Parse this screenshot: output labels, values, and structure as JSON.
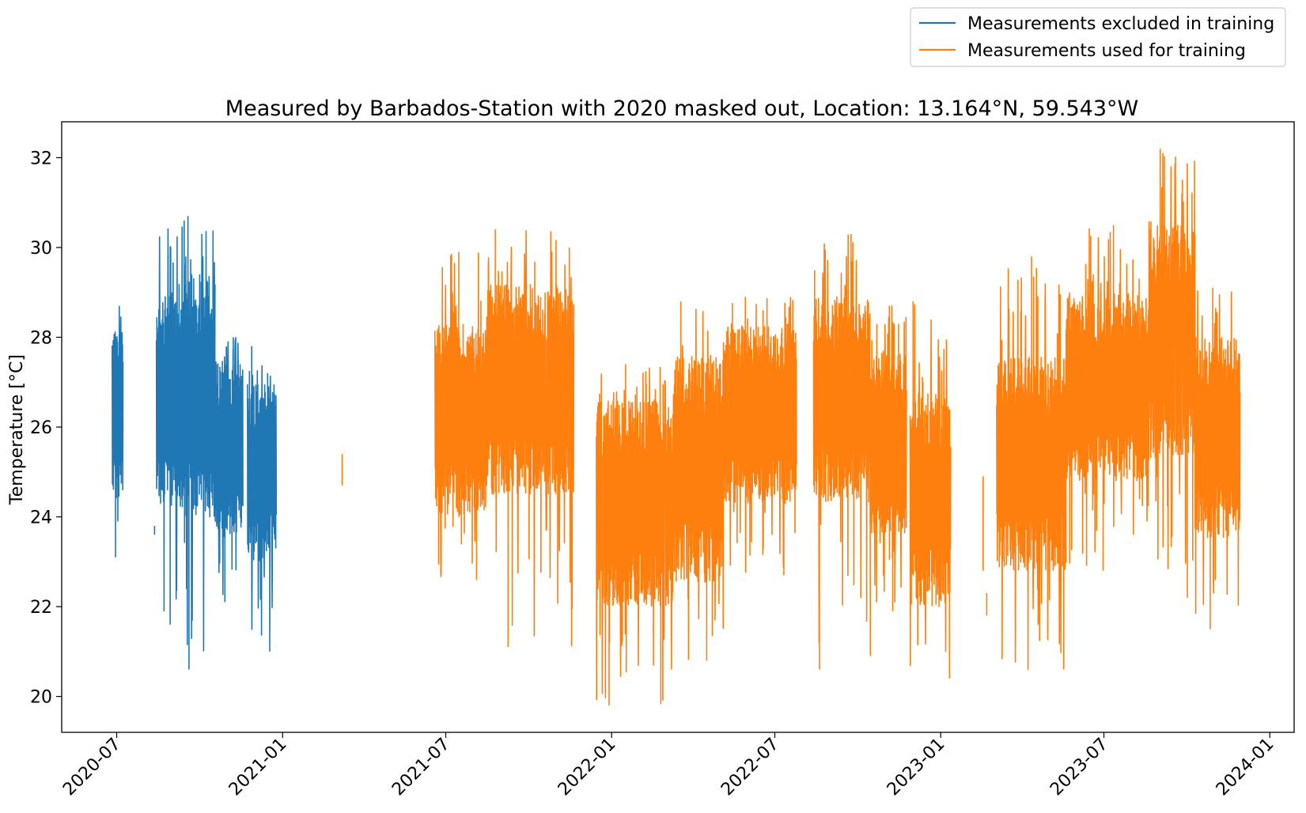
{
  "chart_data": {
    "type": "line",
    "title": "Measured by Barbados-Station with 2020 masked out, Location: 13.164°N, 59.543°W",
    "xlabel": "",
    "ylabel": "Temperature [°C]",
    "xlim": [
      "2020-05-01",
      "2024-01-28"
    ],
    "ylim": [
      19.2,
      32.8
    ],
    "x_ticks": [
      "2020-07",
      "2021-01",
      "2021-07",
      "2022-01",
      "2022-07",
      "2023-01",
      "2023-07",
      "2024-01"
    ],
    "y_ticks": [
      20,
      22,
      24,
      26,
      28,
      30,
      32
    ],
    "grid": false,
    "legend": "upper-right, outside plot",
    "series": [
      {
        "name": "Measurements excluded in training",
        "color": "#1f77b4",
        "segments": [
          {
            "start": "2020-06-26",
            "end": "2020-07-08",
            "min": 23.1,
            "max": 28.7,
            "typ_low": 24.4,
            "typ_high": 28.2
          },
          {
            "start": "2020-08-12",
            "end": "2020-08-12",
            "min": 23.6,
            "max": 23.8,
            "typ_low": 23.6,
            "typ_high": 23.8
          },
          {
            "start": "2020-08-14",
            "end": "2020-09-14",
            "min": 21.6,
            "max": 30.6,
            "typ_low": 24.2,
            "typ_high": 29.0
          },
          {
            "start": "2020-09-14",
            "end": "2020-10-18",
            "min": 20.6,
            "max": 30.7,
            "typ_low": 24.0,
            "typ_high": 29.5
          },
          {
            "start": "2020-10-18",
            "end": "2020-11-18",
            "min": 22.1,
            "max": 28.0,
            "typ_low": 23.5,
            "typ_high": 27.5
          },
          {
            "start": "2020-11-23",
            "end": "2020-12-25",
            "min": 21.0,
            "max": 27.8,
            "typ_low": 23.0,
            "typ_high": 27.0
          }
        ]
      },
      {
        "name": "Measurements used for training",
        "color": "#ff7f0e",
        "segments": [
          {
            "start": "2021-03-08",
            "end": "2021-03-08",
            "min": 24.7,
            "max": 25.4,
            "typ_low": 24.7,
            "typ_high": 25.4
          },
          {
            "start": "2021-06-19",
            "end": "2021-08-15",
            "min": 22.6,
            "max": 29.9,
            "typ_low": 24.0,
            "typ_high": 28.3
          },
          {
            "start": "2021-08-15",
            "end": "2021-11-20",
            "min": 21.1,
            "max": 30.4,
            "typ_low": 24.5,
            "typ_high": 29.2
          },
          {
            "start": "2021-12-15",
            "end": "2022-03-10",
            "min": 19.8,
            "max": 27.4,
            "typ_low": 22.0,
            "typ_high": 26.6
          },
          {
            "start": "2022-03-10",
            "end": "2022-05-05",
            "min": 20.8,
            "max": 28.8,
            "typ_low": 22.5,
            "typ_high": 27.6
          },
          {
            "start": "2022-05-05",
            "end": "2022-07-25",
            "min": 22.7,
            "max": 28.9,
            "typ_low": 24.3,
            "typ_high": 28.3
          },
          {
            "start": "2022-08-13",
            "end": "2022-10-15",
            "min": 20.6,
            "max": 30.3,
            "typ_low": 24.3,
            "typ_high": 28.9
          },
          {
            "start": "2022-10-15",
            "end": "2022-11-24",
            "min": 21.9,
            "max": 28.7,
            "typ_low": 23.6,
            "typ_high": 27.7
          },
          {
            "start": "2022-11-28",
            "end": "2023-01-12",
            "min": 20.4,
            "max": 28.8,
            "typ_low": 22.0,
            "typ_high": 26.8
          },
          {
            "start": "2023-02-17",
            "end": "2023-02-18",
            "min": 22.8,
            "max": 24.9,
            "typ_low": 22.8,
            "typ_high": 24.9
          },
          {
            "start": "2023-02-21",
            "end": "2023-02-21",
            "min": 21.8,
            "max": 22.3,
            "typ_low": 21.8,
            "typ_high": 22.3
          },
          {
            "start": "2023-03-04",
            "end": "2023-05-20",
            "min": 20.6,
            "max": 29.8,
            "typ_low": 22.8,
            "typ_high": 27.6
          },
          {
            "start": "2023-05-20",
            "end": "2023-08-20",
            "min": 22.8,
            "max": 30.5,
            "typ_low": 24.8,
            "typ_high": 29.0
          },
          {
            "start": "2023-08-20",
            "end": "2023-10-10",
            "min": 22.2,
            "max": 32.2,
            "typ_low": 25.3,
            "typ_high": 30.6
          },
          {
            "start": "2023-10-10",
            "end": "2023-11-29",
            "min": 21.5,
            "max": 29.1,
            "typ_low": 23.5,
            "typ_high": 28.0
          }
        ]
      }
    ]
  }
}
